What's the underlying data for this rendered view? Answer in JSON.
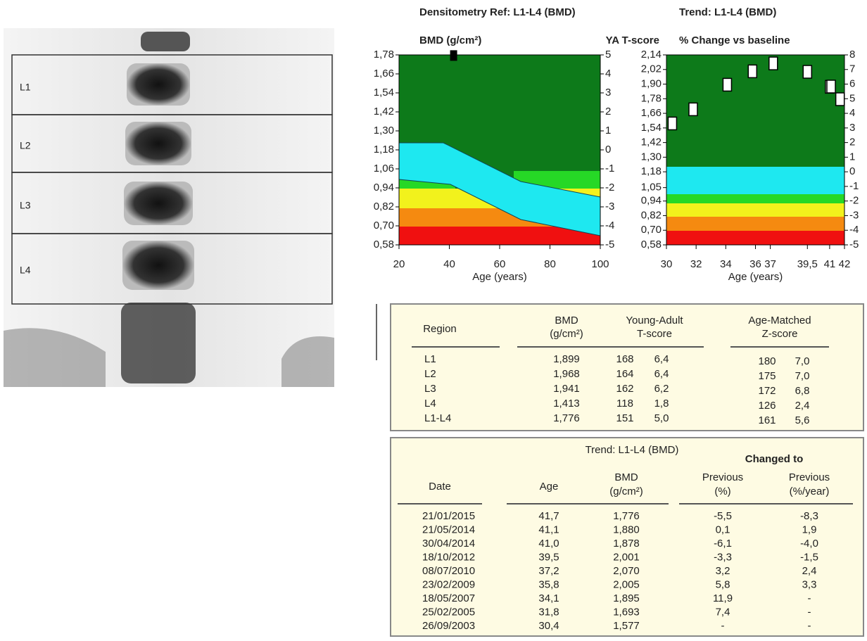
{
  "spine_image": {
    "labels": [
      "L1",
      "L2",
      "L3",
      "L4"
    ]
  },
  "chart_data": [
    {
      "type": "scatter",
      "title": "Densitometry Ref: L1-L4 (BMD)",
      "y_label": "BMD (g/cm²)",
      "y2_label": "YA T-score",
      "x_label": "Age (years)",
      "x": [
        41.7
      ],
      "values": [
        1.776
      ],
      "color": "#000000",
      "xlim": [
        20,
        100
      ],
      "xticks": [
        20,
        40,
        60,
        80,
        100
      ],
      "ylim": [
        0.58,
        1.78
      ],
      "yticks": [
        {
          "value": 0.58,
          "label": "0,58"
        },
        {
          "value": 0.7,
          "label": "0,70"
        },
        {
          "value": 0.82,
          "label": "0,82"
        },
        {
          "value": 0.94,
          "label": "0,94"
        },
        {
          "value": 1.06,
          "label": "1,06"
        },
        {
          "value": 1.18,
          "label": "1,18"
        },
        {
          "value": 1.3,
          "label": "1,30"
        },
        {
          "value": 1.42,
          "label": "1,42"
        },
        {
          "value": 1.54,
          "label": "1,54"
        },
        {
          "value": 1.66,
          "label": "1,66"
        },
        {
          "value": 1.78,
          "label": "1,78"
        }
      ],
      "y2lim": [
        -5,
        5
      ],
      "y2ticks": [
        -5,
        -4,
        -3,
        -2,
        -1,
        0,
        1,
        2,
        3,
        4,
        5
      ]
    },
    {
      "type": "scatter",
      "title": "Trend: L1-L4 (BMD)",
      "y2_label": "% Change vs baseline",
      "x_label": "Age (years)",
      "x": [
        30.4,
        31.8,
        34.1,
        35.8,
        37.2,
        39.5,
        41.0,
        41.1,
        41.7
      ],
      "values": [
        1.577,
        1.693,
        1.895,
        2.005,
        2.07,
        2.001,
        1.878,
        1.88,
        1.776
      ],
      "color": "#ffffff",
      "xlim": [
        30,
        42
      ],
      "xticks": [
        30,
        32,
        34,
        36,
        37,
        {
          "value": 39.5,
          "label": "39,5"
        },
        41,
        42
      ],
      "ylim": [
        0.58,
        2.14
      ],
      "yticks": [
        {
          "value": 0.58,
          "label": "0,58"
        },
        {
          "value": 0.7,
          "label": "0,70"
        },
        {
          "value": 0.82,
          "label": "0,82"
        },
        {
          "value": 0.94,
          "label": "0,94"
        },
        {
          "value": 1.05,
          "label": "1,05"
        },
        {
          "value": 1.18,
          "label": "1,18"
        },
        {
          "value": 1.3,
          "label": "1,30"
        },
        {
          "value": 1.42,
          "label": "1,42"
        },
        {
          "value": 1.54,
          "label": "1,54"
        },
        {
          "value": 1.66,
          "label": "1,66"
        },
        {
          "value": 1.78,
          "label": "1,78"
        },
        {
          "value": 1.9,
          "label": "1,90"
        },
        {
          "value": 2.02,
          "label": "2,02"
        },
        {
          "value": 2.14,
          "label": "2,14"
        }
      ],
      "y2lim": [
        -5,
        8
      ],
      "y2ticks": [
        -5,
        -4,
        -3,
        -2,
        -1,
        0,
        1,
        2,
        3,
        4,
        5,
        6,
        7,
        8
      ]
    }
  ],
  "results_table": {
    "headers": [
      [
        "Region"
      ],
      [
        "BMD",
        "(g/cm²)"
      ],
      [
        "Young-Adult",
        "T-score"
      ],
      [
        "Age-Matched",
        "Z-score"
      ]
    ],
    "rows": [
      [
        "L1",
        "1,899",
        "168",
        "6,4",
        "180",
        "7,0"
      ],
      [
        "L2",
        "1,968",
        "164",
        "6,4",
        "175",
        "7,0"
      ],
      [
        "L3",
        "1,941",
        "162",
        "6,2",
        "172",
        "6,8"
      ],
      [
        "L4",
        "1,413",
        "118",
        "1,8",
        "126",
        "2,4"
      ],
      [
        "L1-L4",
        "1,776",
        "151",
        "5,0",
        "161",
        "5,6"
      ]
    ]
  },
  "trend_table": {
    "title": "Trend: L1-L4 (BMD)",
    "group_header": "Changed to",
    "headers": [
      [
        "Date"
      ],
      [
        "Age"
      ],
      [
        "BMD",
        "(g/cm²)"
      ],
      [
        "Previous",
        "(%)"
      ],
      [
        "Previous",
        "(%/year)"
      ]
    ],
    "rows": [
      [
        "21/01/2015",
        "41,7",
        "1,776",
        "-5,5",
        "-8,3"
      ],
      [
        "21/05/2014",
        "41,1",
        "1,880",
        "0,1",
        "1,9"
      ],
      [
        "30/04/2014",
        "41,0",
        "1,878",
        "-6,1",
        "-4,0"
      ],
      [
        "18/10/2012",
        "39,5",
        "2,001",
        "-3,3",
        "-1,5"
      ],
      [
        "08/07/2010",
        "37,2",
        "2,070",
        "3,2",
        "2,4"
      ],
      [
        "23/02/2009",
        "35,8",
        "2,005",
        "5,8",
        "3,3"
      ],
      [
        "18/05/2007",
        "34,1",
        "1,895",
        "11,9",
        "-"
      ],
      [
        "25/02/2005",
        "31,8",
        "1,693",
        "7,4",
        "-"
      ],
      [
        "26/09/2003",
        "30,4",
        "1,577",
        "-",
        "-"
      ]
    ]
  }
}
